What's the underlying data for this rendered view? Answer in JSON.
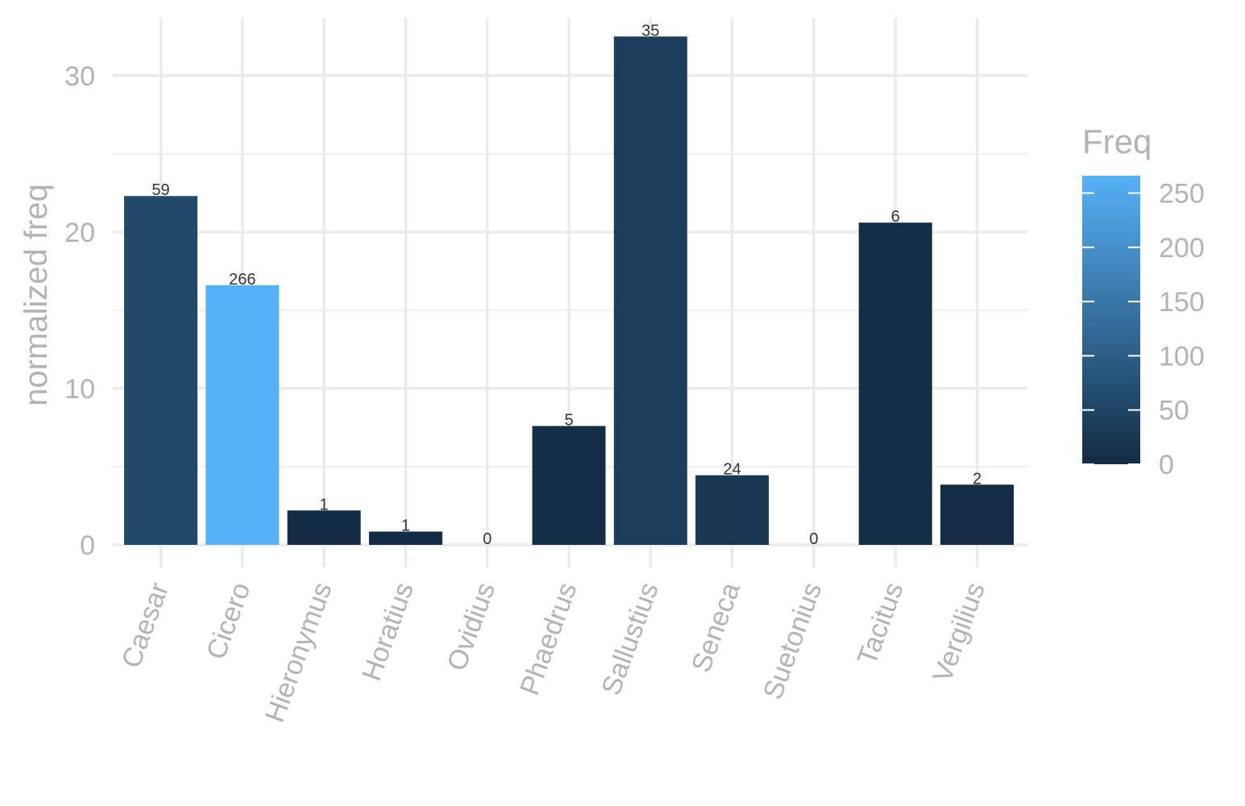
{
  "chart_data": {
    "type": "bar",
    "categories": [
      "Caesar",
      "Cicero",
      "Hieronymus",
      "Horatius",
      "Ovidius",
      "Phaedrus",
      "Sallustius",
      "Seneca",
      "Suetonius",
      "Tacitus",
      "Vergilius"
    ],
    "values": [
      22.3,
      16.6,
      2.2,
      0.85,
      0,
      7.6,
      32.5,
      4.45,
      0,
      20.6,
      3.85
    ],
    "freq": [
      59,
      266,
      1,
      1,
      0,
      5,
      35,
      24,
      0,
      6,
      2
    ],
    "bar_labels": [
      "59",
      "266",
      "1",
      "1",
      "0",
      "5",
      "35",
      "24",
      "0",
      "6",
      "2"
    ],
    "title": "",
    "xlabel": "",
    "ylabel": "normalized freq",
    "ylim": [
      0,
      33.7
    ],
    "y_ticks": [
      "0",
      "10",
      "20",
      "30"
    ],
    "y_tick_values": [
      0,
      10,
      20,
      30
    ],
    "grid": true,
    "legend": {
      "title": "Freq",
      "placement": "right",
      "range": [
        0,
        266
      ],
      "ticks": [
        "0",
        "50",
        "100",
        "150",
        "200",
        "250"
      ],
      "tick_values": [
        0,
        50,
        100,
        150,
        200,
        250
      ],
      "color_low": "#132B43",
      "color_high": "#56B1F7"
    }
  }
}
